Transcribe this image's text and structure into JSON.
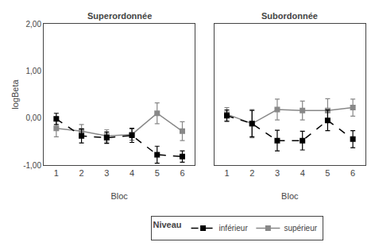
{
  "chart_data": [
    {
      "type": "line",
      "title": "Superordonnée",
      "x": [
        1,
        2,
        3,
        4,
        5,
        6
      ],
      "xlim": [
        0.5,
        6.5
      ],
      "xticks": [
        1,
        2,
        3,
        4,
        5,
        6
      ],
      "ylim": [
        -1.0,
        2.0
      ],
      "yticks": [
        {
          "value": -1.0,
          "label": "-1,00"
        },
        {
          "value": 0.0,
          "label": "0,00"
        },
        {
          "value": 1.0,
          "label": "1,00"
        },
        {
          "value": 2.0,
          "label": "2,00"
        }
      ],
      "xlabel": "Bloc",
      "ylabel": "logBeta",
      "grid": false,
      "legend": "bottom",
      "legend_title": "Niveau",
      "series": [
        {
          "name": "inférieur",
          "color": "#000000",
          "line_style": "dashed",
          "marker": "square",
          "values": [
            -0.02,
            -0.38,
            -0.42,
            -0.37,
            -0.78,
            -0.82
          ],
          "errors": [
            0.12,
            0.15,
            0.12,
            0.15,
            0.18,
            0.12
          ]
        },
        {
          "name": "supérieur",
          "color": "#888888",
          "line_style": "solid",
          "marker": "square",
          "values": [
            -0.22,
            -0.28,
            -0.38,
            -0.35,
            0.1,
            -0.28
          ],
          "errors": [
            0.18,
            0.14,
            0.13,
            0.12,
            0.22,
            0.2
          ]
        }
      ]
    },
    {
      "type": "line",
      "title": "Subordonnée",
      "x": [
        1,
        2,
        3,
        4,
        5,
        6
      ],
      "xlim": [
        0.5,
        6.5
      ],
      "xticks": [
        1,
        2,
        3,
        4,
        5,
        6
      ],
      "ylim": [
        -1.0,
        2.0
      ],
      "yticks": [
        {
          "value": -1.0,
          "label": "-1,00"
        },
        {
          "value": 0.0,
          "label": "0,00"
        },
        {
          "value": 1.0,
          "label": "1,00"
        },
        {
          "value": 2.0,
          "label": "2,00"
        }
      ],
      "xlabel": "Bloc",
      "grid": false,
      "tick_labels": "x",
      "series": [
        {
          "name": "inférieur",
          "color": "#000000",
          "line_style": "dashed",
          "marker": "square",
          "values": [
            0.05,
            -0.12,
            -0.48,
            -0.48,
            -0.05,
            -0.45
          ],
          "errors": [
            0.12,
            0.28,
            0.22,
            0.2,
            0.22,
            0.18
          ]
        },
        {
          "name": "supérieur",
          "color": "#888888",
          "line_style": "solid",
          "marker": "square",
          "values": [
            0.08,
            -0.12,
            0.18,
            0.16,
            0.16,
            0.22
          ],
          "errors": [
            0.14,
            0.3,
            0.22,
            0.2,
            0.25,
            0.18
          ]
        }
      ]
    }
  ]
}
